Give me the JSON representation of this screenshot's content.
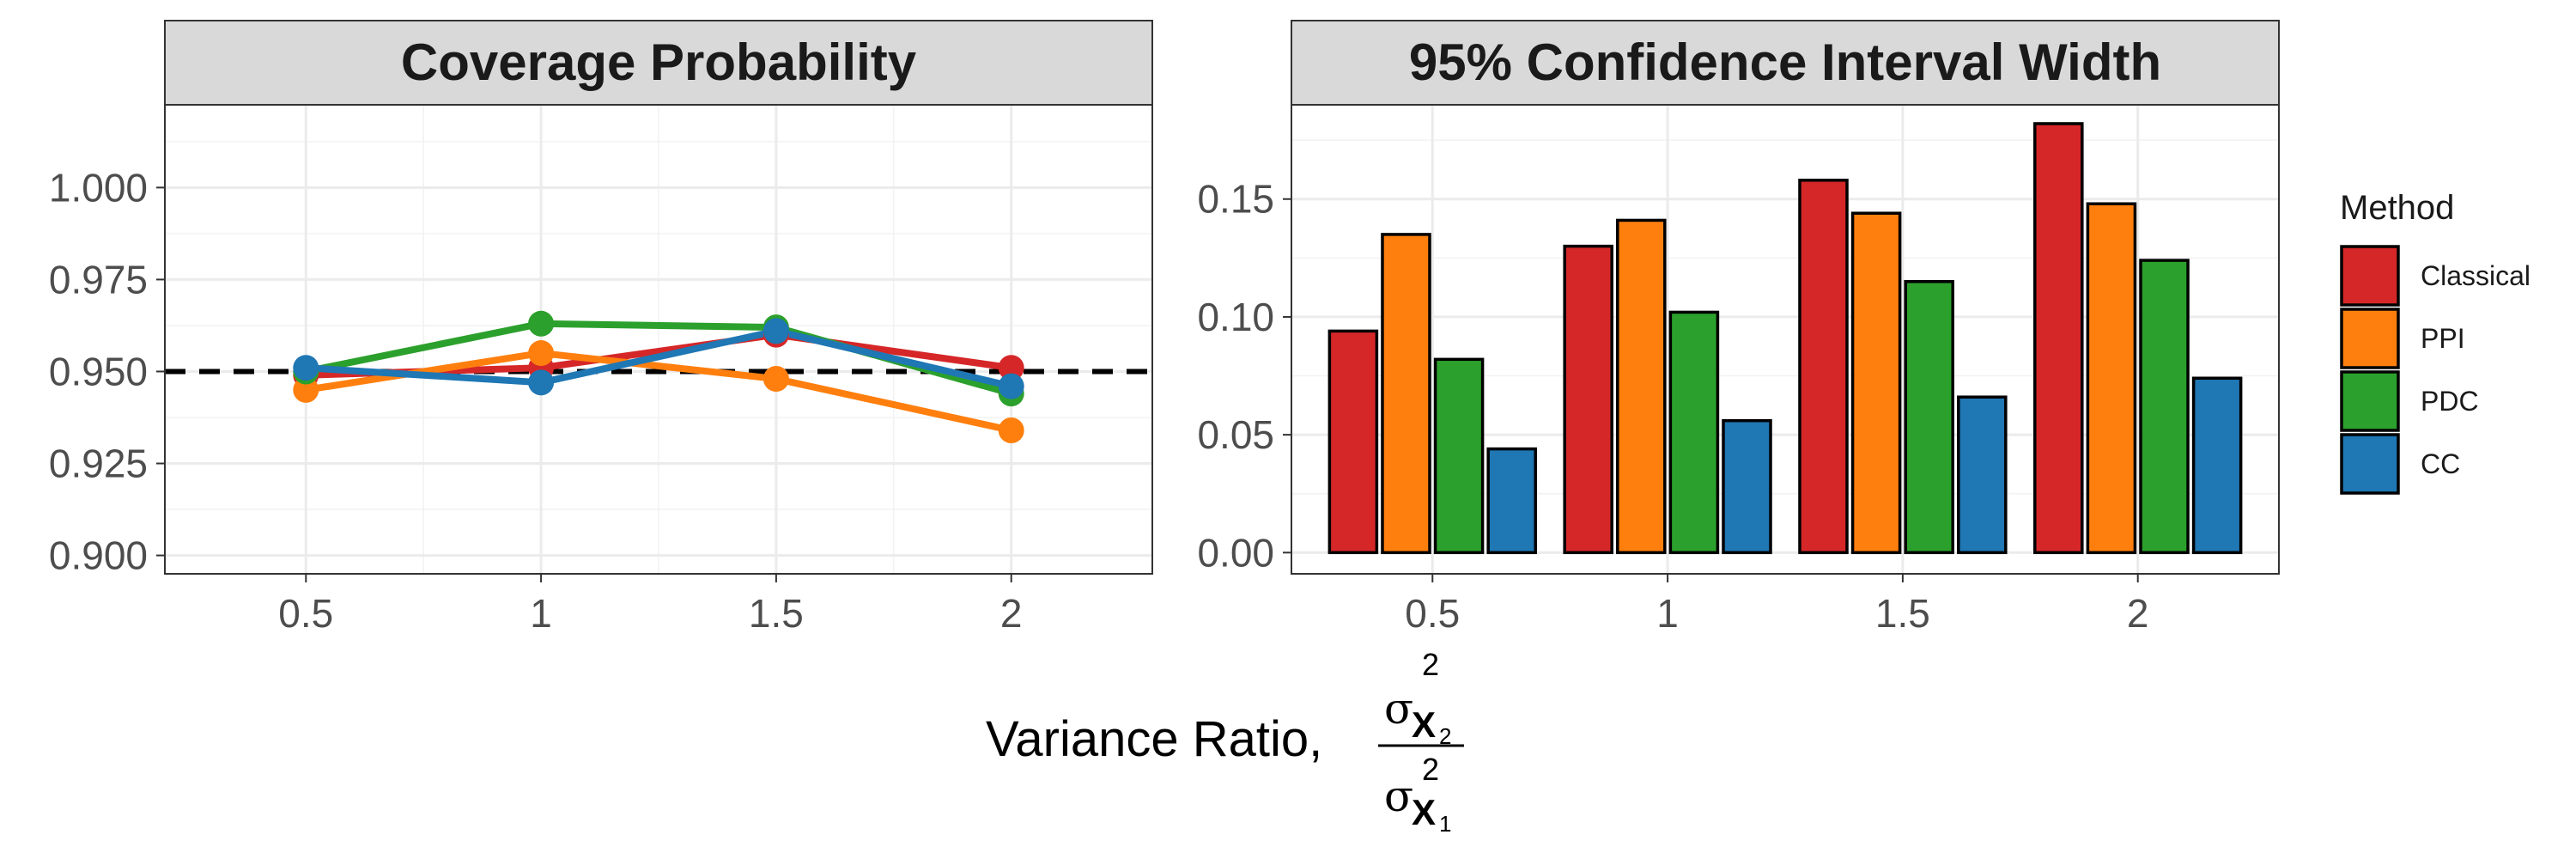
{
  "chart_data": [
    {
      "type": "line",
      "title": "Coverage Probability",
      "x": [
        0.5,
        1,
        1.5,
        2
      ],
      "x_tick_labels": [
        "0.5",
        "1",
        "1.5",
        "2"
      ],
      "ylim": [
        0.895,
        1.0225
      ],
      "y_ticks": [
        0.9,
        0.925,
        0.95,
        0.975,
        1.0
      ],
      "y_tick_labels": [
        "0.900",
        "0.925",
        "0.950",
        "0.975",
        "1.000"
      ],
      "reference_line": 0.95,
      "grid": true,
      "series": [
        {
          "name": "Classical",
          "color": "#d62728",
          "values": [
            0.949,
            0.951,
            0.96,
            0.951
          ]
        },
        {
          "name": "PPI",
          "color": "#ff7f0e",
          "values": [
            0.945,
            0.955,
            0.948,
            0.934
          ]
        },
        {
          "name": "PDC",
          "color": "#2ca02c",
          "values": [
            0.95,
            0.963,
            0.962,
            0.944
          ]
        },
        {
          "name": "CC",
          "color": "#1f77b4",
          "values": [
            0.951,
            0.947,
            0.961,
            0.946
          ]
        }
      ]
    },
    {
      "type": "bar",
      "title": "95% Confidence Interval Width",
      "categories": [
        "0.5",
        "1",
        "1.5",
        "2"
      ],
      "ylim": [
        -0.009,
        0.19
      ],
      "y_ticks": [
        0.0,
        0.05,
        0.1,
        0.15
      ],
      "y_tick_labels": [
        "0.00",
        "0.05",
        "0.10",
        "0.15"
      ],
      "grid": true,
      "series": [
        {
          "name": "Classical",
          "color": "#d62728",
          "values": [
            0.094,
            0.13,
            0.158,
            0.182
          ]
        },
        {
          "name": "PPI",
          "color": "#ff7f0e",
          "values": [
            0.135,
            0.141,
            0.144,
            0.148
          ]
        },
        {
          "name": "PDC",
          "color": "#2ca02c",
          "values": [
            0.082,
            0.102,
            0.115,
            0.124
          ]
        },
        {
          "name": "CC",
          "color": "#1f77b4",
          "values": [
            0.044,
            0.056,
            0.066,
            0.074
          ]
        }
      ]
    }
  ],
  "xlabel": {
    "text": "Variance Ratio, ",
    "numerator": {
      "symbol": "σ",
      "sub": "X",
      "subsub": "2",
      "sup": "2"
    },
    "denominator": {
      "symbol": "σ",
      "sub": "X",
      "subsub": "1",
      "sup": "2"
    }
  },
  "legend": {
    "title": "Method",
    "position": "right",
    "items": [
      {
        "label": "Classical",
        "color": "#d62728"
      },
      {
        "label": "PPI",
        "color": "#ff7f0e"
      },
      {
        "label": "PDC",
        "color": "#2ca02c"
      },
      {
        "label": "CC",
        "color": "#1f77b4"
      }
    ]
  }
}
